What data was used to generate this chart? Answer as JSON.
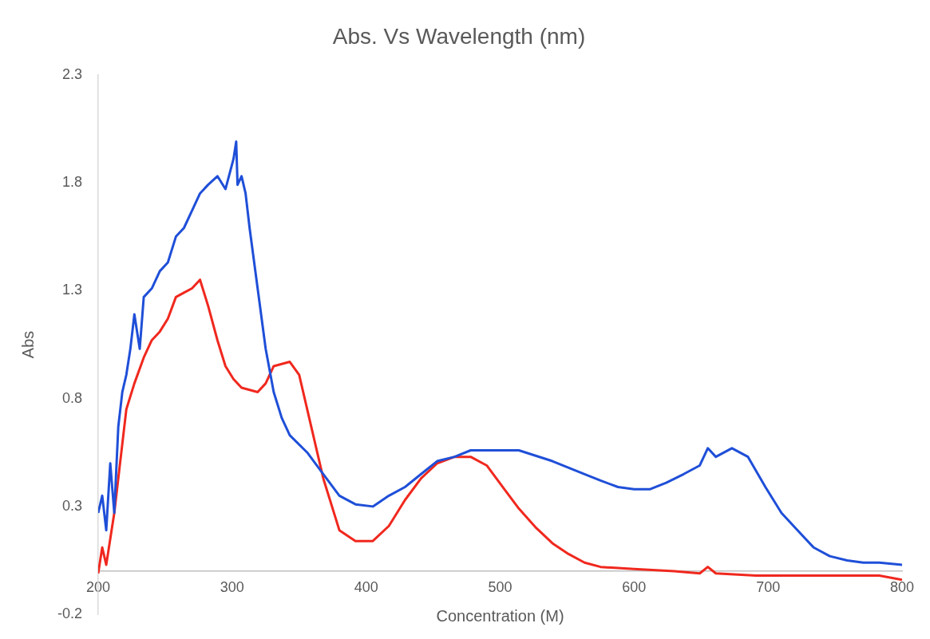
{
  "chart_data": {
    "type": "line",
    "title": "Abs. Vs Wavelength (nm)",
    "xlabel": "Concentration (M)",
    "ylabel": "Abs",
    "xlim": [
      200,
      800
    ],
    "xticks": [
      200,
      300,
      400,
      500,
      600,
      700,
      800
    ],
    "ylim": [
      -0.2,
      2.3
    ],
    "yticks": [
      -0.2,
      0.3,
      0.8,
      1.3,
      1.8,
      2.3
    ],
    "grid": false,
    "legend": false,
    "marker": "none",
    "line_style": "solid",
    "series": [
      {
        "color": "#1f4fd8",
        "x": [
          200,
          203,
          206,
          209,
          212,
          215,
          218,
          221,
          224,
          227,
          231,
          234,
          240,
          246,
          252,
          258,
          264,
          270,
          276,
          282,
          289,
          295,
          301,
          303,
          304,
          307,
          310,
          313,
          319,
          325,
          331,
          337,
          343,
          356,
          368,
          380,
          392,
          405,
          417,
          429,
          441,
          453,
          466,
          478,
          490,
          514,
          539,
          563,
          575,
          588,
          600,
          612,
          624,
          637,
          649,
          655,
          661,
          673,
          685,
          698,
          710,
          722,
          734,
          746,
          759,
          771,
          783,
          800
        ],
        "values": [
          0.27,
          0.35,
          0.19,
          0.5,
          0.27,
          0.67,
          0.83,
          0.91,
          1.03,
          1.19,
          1.03,
          1.27,
          1.31,
          1.39,
          1.43,
          1.55,
          1.59,
          1.67,
          1.75,
          1.79,
          1.83,
          1.77,
          1.91,
          1.99,
          1.79,
          1.83,
          1.75,
          1.59,
          1.31,
          1.03,
          0.83,
          0.71,
          0.63,
          0.55,
          0.45,
          0.35,
          0.31,
          0.3,
          0.35,
          0.39,
          0.45,
          0.51,
          0.53,
          0.56,
          0.56,
          0.56,
          0.51,
          0.45,
          0.42,
          0.39,
          0.38,
          0.38,
          0.41,
          0.45,
          0.49,
          0.57,
          0.53,
          0.57,
          0.53,
          0.39,
          0.27,
          0.19,
          0.11,
          0.07,
          0.05,
          0.04,
          0.04,
          0.03
        ]
      },
      {
        "color": "#f0281e",
        "x": [
          200,
          203,
          206,
          209,
          212,
          215,
          218,
          221,
          227,
          234,
          240,
          246,
          252,
          258,
          264,
          270,
          276,
          282,
          289,
          295,
          301,
          307,
          319,
          325,
          331,
          343,
          350,
          356,
          368,
          380,
          392,
          405,
          417,
          429,
          441,
          453,
          466,
          478,
          490,
          502,
          514,
          527,
          539,
          551,
          563,
          575,
          600,
          630,
          649,
          655,
          661,
          691,
          722,
          783,
          800
        ],
        "values": [
          -0.01,
          0.11,
          0.03,
          0.15,
          0.27,
          0.43,
          0.59,
          0.75,
          0.87,
          0.99,
          1.07,
          1.11,
          1.17,
          1.27,
          1.29,
          1.31,
          1.35,
          1.23,
          1.07,
          0.95,
          0.89,
          0.85,
          0.83,
          0.87,
          0.95,
          0.97,
          0.91,
          0.75,
          0.43,
          0.19,
          0.14,
          0.14,
          0.21,
          0.33,
          0.43,
          0.5,
          0.53,
          0.53,
          0.49,
          0.39,
          0.29,
          0.2,
          0.13,
          0.08,
          0.04,
          0.02,
          0.01,
          0,
          -0.01,
          0.02,
          -0.01,
          -0.02,
          -0.02,
          -0.02,
          -0.04
        ]
      }
    ]
  }
}
